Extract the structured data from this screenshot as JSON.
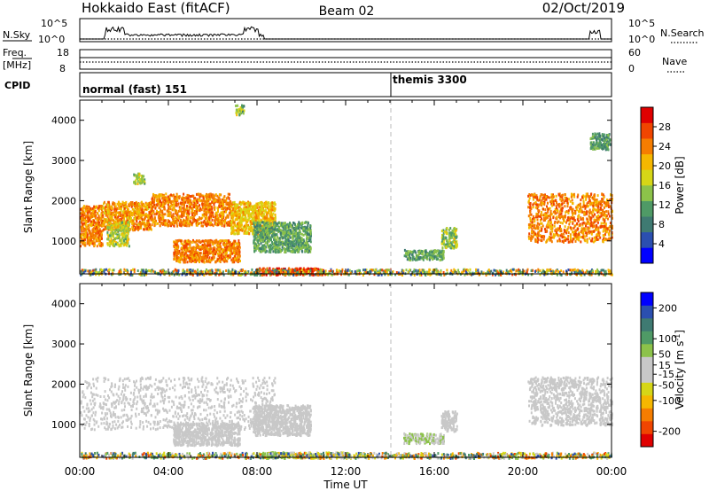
{
  "header": {
    "station": "Hokkaido East (fitACF)",
    "beam": "Beam 02",
    "date": "02/Oct/2019"
  },
  "strips": {
    "nsky_label": "N.Sky",
    "nsearch_label": "N.Search",
    "nsky_ticks": [
      "10^5",
      "10^0"
    ],
    "nsearch_ticks": [
      "10^5",
      "10^0"
    ],
    "freq_label": "Freq.",
    "freq_unit": "[MHz]",
    "freq_ticks": [
      "18",
      "8"
    ],
    "nave_label": "Nave",
    "nave_ticks": [
      "60",
      "0"
    ],
    "cpid_label": "CPID",
    "cpid_segments": [
      {
        "label": "normal (fast) 151",
        "start_hour": 0
      },
      {
        "label": "themis 3300",
        "start_hour": 14.0
      }
    ]
  },
  "chart_data": [
    {
      "type": "heatmap",
      "name": "power",
      "xlabel": "",
      "ylabel": "Slant Range [km]",
      "x_range_hours": [
        0,
        24
      ],
      "ylim": [
        180,
        4500
      ],
      "y_ticks": [
        1000,
        2000,
        3000,
        4000
      ],
      "colorbar": {
        "label": "Power [dB]",
        "ticks": [
          4,
          8,
          12,
          16,
          20,
          24,
          28
        ],
        "range": [
          0,
          32
        ],
        "colors": [
          "#0000ff",
          "#2b4fb0",
          "#3f7a72",
          "#4f9a66",
          "#8cc24a",
          "#d6d617",
          "#f5b700",
          "#f57d00",
          "#f04500",
          "#e00000"
        ]
      },
      "regions": [
        {
          "t": [
            0.0,
            1.0
          ],
          "r": [
            900,
            1900
          ],
          "v": [
            20,
            28
          ]
        },
        {
          "t": [
            1.0,
            3.2
          ],
          "r": [
            1300,
            2000
          ],
          "v": [
            18,
            28
          ]
        },
        {
          "t": [
            3.2,
            6.8
          ],
          "r": [
            1400,
            2200
          ],
          "v": [
            20,
            28
          ]
        },
        {
          "t": [
            6.8,
            8.8
          ],
          "r": [
            1200,
            2000
          ],
          "v": [
            16,
            24
          ]
        },
        {
          "t": [
            7.8,
            10.4
          ],
          "r": [
            750,
            1500
          ],
          "v": [
            8,
            16
          ]
        },
        {
          "t": [
            4.2,
            7.2
          ],
          "r": [
            500,
            1050
          ],
          "v": [
            20,
            28
          ]
        },
        {
          "t": [
            1.2,
            2.2
          ],
          "r": [
            900,
            1500
          ],
          "v": [
            12,
            22
          ]
        },
        {
          "t": [
            2.4,
            2.9
          ],
          "r": [
            2450,
            2700
          ],
          "v": [
            12,
            20
          ]
        },
        {
          "t": [
            16.3,
            17.0
          ],
          "r": [
            850,
            1350
          ],
          "v": [
            10,
            20
          ]
        },
        {
          "t": [
            14.6,
            16.4
          ],
          "r": [
            550,
            800
          ],
          "v": [
            8,
            16
          ]
        },
        {
          "t": [
            20.2,
            24.0
          ],
          "r": [
            1000,
            2200
          ],
          "v": [
            20,
            28
          ]
        },
        {
          "t": [
            7.0,
            7.4
          ],
          "r": [
            4150,
            4400
          ],
          "v": [
            8,
            20
          ]
        },
        {
          "t": [
            23.0,
            23.9
          ],
          "r": [
            3300,
            3700
          ],
          "v": [
            8,
            14
          ]
        },
        {
          "t": [
            8.0,
            11.0
          ],
          "r": [
            180,
            350
          ],
          "v": [
            24,
            32
          ]
        },
        {
          "t": [
            0.0,
            24.0
          ],
          "r": [
            180,
            320
          ],
          "v": [
            4,
            28
          ]
        }
      ]
    },
    {
      "type": "heatmap",
      "name": "velocity",
      "xlabel": "Time UT",
      "ylabel": "Slant Range [km]",
      "x_range_hours": [
        0,
        24
      ],
      "x_ticks": [
        "00:00",
        "04:00",
        "08:00",
        "12:00",
        "16:00",
        "20:00",
        "00:00"
      ],
      "ylim": [
        180,
        4500
      ],
      "y_ticks": [
        1000,
        2000,
        3000,
        4000
      ],
      "colorbar": {
        "label": "Velocity [m s^-1]",
        "ticks": [
          200,
          100,
          50,
          15,
          -15,
          -50,
          -100,
          -200
        ],
        "range": [
          -250,
          250
        ],
        "colors": [
          "#e00000",
          "#f04500",
          "#f57d00",
          "#f5b700",
          "#d6d617",
          "#c8c8c8",
          "#c8c8c8",
          "#8cc24a",
          "#4f9a66",
          "#3f7a72",
          "#2b4fb0",
          "#0000ff"
        ]
      },
      "regions": [
        {
          "t": [
            0.0,
            8.8
          ],
          "r": [
            900,
            2200
          ],
          "v": [
            -15,
            15
          ]
        },
        {
          "t": [
            7.8,
            10.4
          ],
          "r": [
            750,
            1500
          ],
          "v": [
            -15,
            15
          ]
        },
        {
          "t": [
            4.2,
            7.2
          ],
          "r": [
            500,
            1050
          ],
          "v": [
            -15,
            15
          ]
        },
        {
          "t": [
            16.3,
            17.0
          ],
          "r": [
            850,
            1350
          ],
          "v": [
            -15,
            15
          ]
        },
        {
          "t": [
            14.6,
            16.4
          ],
          "r": [
            550,
            800
          ],
          "v": [
            20,
            60
          ]
        },
        {
          "t": [
            20.2,
            24.0
          ],
          "r": [
            1000,
            2200
          ],
          "v": [
            -15,
            15
          ]
        },
        {
          "t": [
            8.0,
            9.4
          ],
          "r": [
            180,
            330
          ],
          "v": [
            40,
            60
          ]
        },
        {
          "t": [
            9.4,
            12.2
          ],
          "r": [
            180,
            330
          ],
          "v": [
            -60,
            -20
          ]
        },
        {
          "t": [
            0.0,
            24.0
          ],
          "r": [
            180,
            320
          ],
          "v": [
            -200,
            200
          ]
        }
      ]
    }
  ]
}
